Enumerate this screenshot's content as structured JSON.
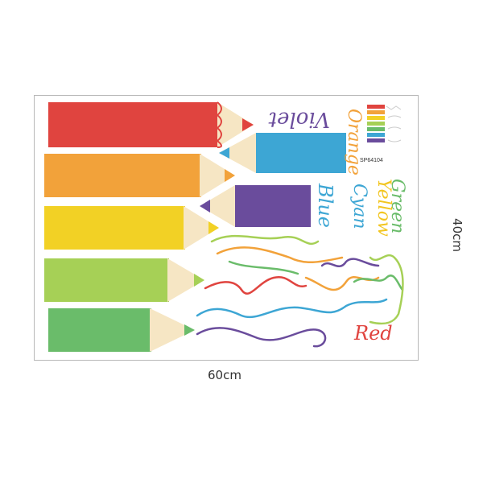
{
  "product": {
    "code": "SP64104",
    "width_label": "60cm",
    "height_label": "40cm"
  },
  "pencils": [
    {
      "name": "red",
      "color": "#e0443f"
    },
    {
      "name": "blue",
      "color": "#3da6d4"
    },
    {
      "name": "orange",
      "color": "#f2a23a"
    },
    {
      "name": "violet",
      "color": "#6a4c9c"
    },
    {
      "name": "yellow",
      "color": "#f2d125"
    },
    {
      "name": "lightgreen",
      "color": "#a6d056"
    },
    {
      "name": "green",
      "color": "#6abc6a"
    }
  ],
  "color_words": [
    {
      "text": "Violet",
      "color": "#6a4c9c"
    },
    {
      "text": "Orange",
      "color": "#f2a23a"
    },
    {
      "text": "Green",
      "color": "#6abc6a"
    },
    {
      "text": "Yellow",
      "color": "#f2c520"
    },
    {
      "text": "Cyan",
      "color": "#3da6d4"
    },
    {
      "text": "Blue",
      "color": "#3da6d4"
    },
    {
      "text": "Red",
      "color": "#e0443f"
    }
  ]
}
